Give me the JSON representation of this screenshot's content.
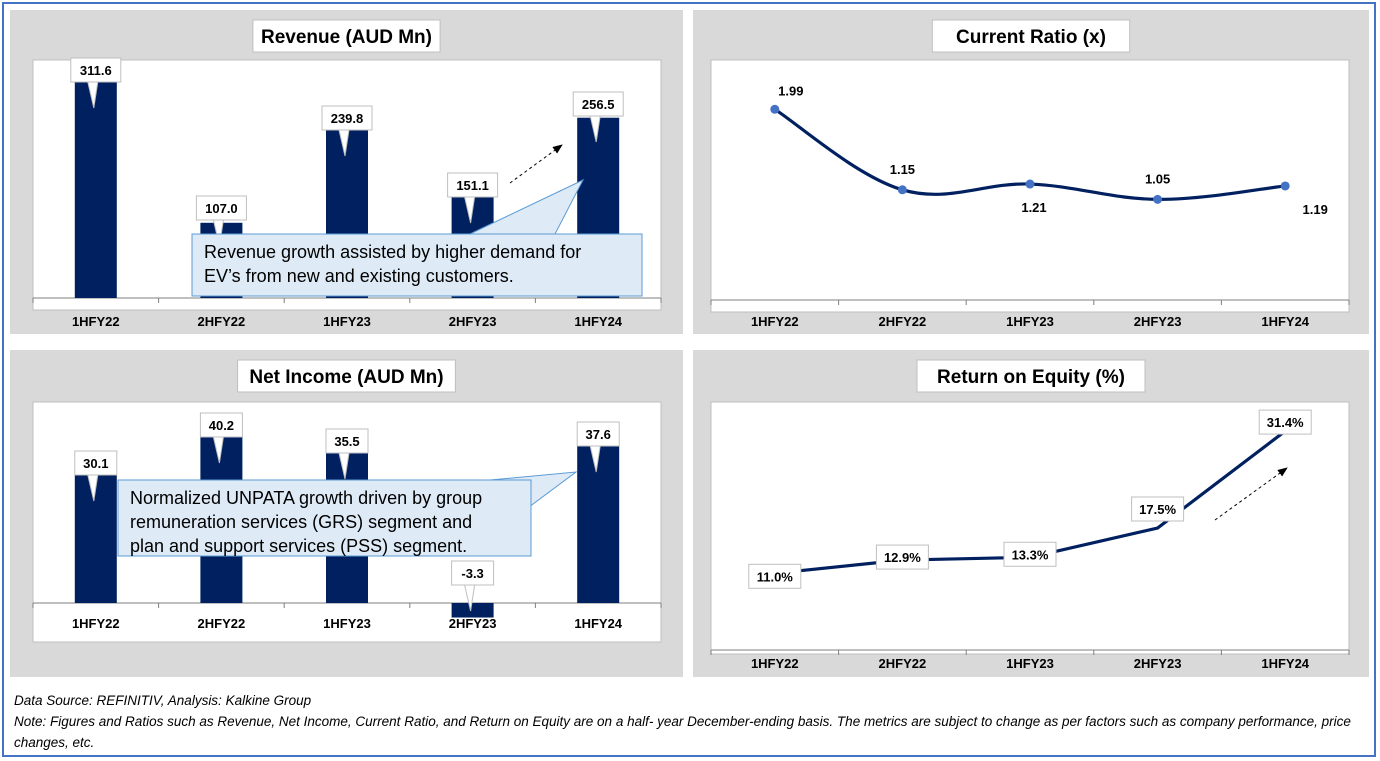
{
  "footer": {
    "source": "Data Source: REFINITIV, Analysis: Kalkine Group",
    "note": "Note: Figures and Ratios such as Revenue, Net Income, Current Ratio, and Return on Equity are on a half- year December-ending basis. The metrics are subject to change as per factors such as company performance, price changes, etc."
  },
  "colors": {
    "series": "#002060",
    "marker": "#4472c4",
    "panel_bg": "#d9d9d9",
    "callout_bg": "#deebf7",
    "callout_border": "#5b9bd5"
  },
  "chart_data": [
    {
      "id": "revenue",
      "type": "bar",
      "title": "Revenue (AUD Mn)",
      "categories": [
        "1HFY22",
        "2HFY22",
        "1HFY23",
        "2HFY23",
        "1HFY24"
      ],
      "values": [
        311.6,
        107.0,
        239.8,
        151.1,
        256.5
      ],
      "labels": [
        "311.6",
        "107.0",
        "239.8",
        "151.1",
        "256.5"
      ],
      "ylim": [
        0,
        350
      ],
      "annotation": "Revenue growth assisted by higher demand for EV’s from new and existing customers."
    },
    {
      "id": "current_ratio",
      "type": "line",
      "title": "Current Ratio (x)",
      "categories": [
        "1HFY22",
        "2HFY22",
        "1HFY23",
        "2HFY23",
        "1HFY24"
      ],
      "values": [
        1.99,
        1.15,
        1.21,
        1.05,
        1.19
      ],
      "labels": [
        "1.99",
        "1.15",
        "1.21",
        "1.05",
        "1.19"
      ],
      "ylim": [
        0,
        2.4
      ]
    },
    {
      "id": "net_income",
      "type": "bar",
      "title": "Net Income (AUD Mn)",
      "categories": [
        "1HFY22",
        "2HFY22",
        "1HFY23",
        "2HFY23",
        "1HFY24"
      ],
      "values": [
        30.1,
        40.2,
        35.5,
        -3.3,
        37.6
      ],
      "labels": [
        "30.1",
        "40.2",
        "35.5",
        "-3.3",
        "37.6"
      ],
      "ylim": [
        -5,
        45
      ],
      "annotation": "Normalized UNPATA growth driven by group remuneration services (GRS) segment and plan and support services (PSS) segment."
    },
    {
      "id": "roe",
      "type": "line",
      "title": "Return on Equity (%)",
      "categories": [
        "1HFY22",
        "2HFY22",
        "1HFY23",
        "2HFY23",
        "1HFY24"
      ],
      "values": [
        11.0,
        12.9,
        13.3,
        17.5,
        31.4
      ],
      "labels": [
        "11.0%",
        "12.9%",
        "13.3%",
        "17.5%",
        "31.4%"
      ],
      "ylim": [
        0,
        35
      ]
    }
  ]
}
